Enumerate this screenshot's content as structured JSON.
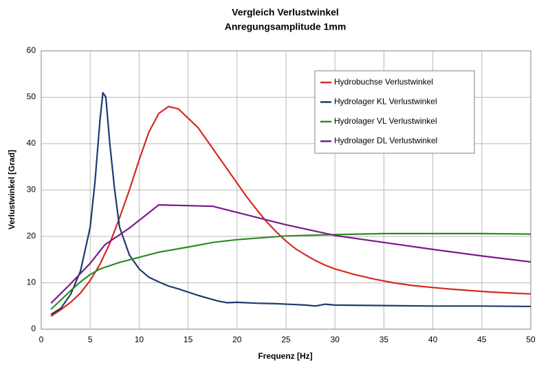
{
  "chart_data": {
    "type": "line",
    "title": "Vergleich Verlustwinkel",
    "subtitle": "Anregungsamplitude 1mm",
    "x_label": "Frequenz [Hz]",
    "y_label": "Verlustwinkel [Grad]",
    "xlim": [
      0,
      50
    ],
    "xticks": [
      0,
      5,
      10,
      15,
      20,
      25,
      30,
      35,
      40,
      45,
      50
    ],
    "ylim": [
      0,
      60
    ],
    "yticks": [
      0,
      10,
      20,
      30,
      40,
      50,
      60
    ],
    "grid": true,
    "legend": "top-right",
    "series": [
      {
        "name": "Hydrobuchse Verlustwinkel",
        "color": "#d42a20",
        "x": [
          1,
          2,
          3,
          4,
          5,
          6,
          7,
          8,
          9,
          10,
          11,
          12,
          13,
          14,
          15,
          16,
          17,
          18,
          19,
          20,
          21,
          22,
          23,
          24,
          25,
          26,
          27,
          28,
          29,
          30,
          32,
          34,
          36,
          38,
          40,
          42,
          44,
          46,
          48,
          50
        ],
        "values": [
          2.8,
          4.2,
          5.8,
          7.8,
          10.5,
          14,
          18.5,
          24,
          30,
          36.5,
          42.5,
          46.5,
          48,
          47.5,
          45.5,
          43.5,
          40.5,
          37.5,
          34.5,
          31.5,
          28.5,
          25.8,
          23.2,
          21,
          19,
          17.3,
          16,
          14.8,
          13.8,
          13,
          11.8,
          10.8,
          10,
          9.4,
          9,
          8.6,
          8.3,
          8,
          7.8,
          7.6
        ]
      },
      {
        "name": "Hydrolager KL Verlustwinkel",
        "color": "#1a3a6e",
        "x": [
          1,
          2,
          3,
          4,
          5,
          5.5,
          6,
          6.3,
          6.6,
          7,
          7.5,
          8,
          9,
          10,
          11,
          12,
          13,
          14,
          15,
          16,
          17,
          18,
          19,
          20,
          22,
          24,
          26,
          27,
          28,
          29,
          30,
          35,
          40,
          45,
          50
        ],
        "values": [
          3.2,
          4.5,
          7.5,
          12.5,
          22,
          32,
          45,
          51,
          50,
          40,
          30,
          22,
          16,
          13,
          11.2,
          10.2,
          9.3,
          8.7,
          8,
          7.3,
          6.7,
          6.1,
          5.7,
          5.8,
          5.6,
          5.5,
          5.3,
          5.2,
          5,
          5.4,
          5.2,
          5.1,
          5,
          5,
          4.9
        ]
      },
      {
        "name": "Hydrolager VL Verlustwinkel",
        "color": "#2e8a22",
        "x": [
          1,
          2,
          3,
          4,
          5,
          6,
          8,
          10,
          12,
          15,
          17.5,
          20,
          25,
          30,
          35,
          40,
          45,
          50
        ],
        "values": [
          4.3,
          6.3,
          8.3,
          10.2,
          11.8,
          13,
          14.4,
          15.5,
          16.6,
          17.7,
          18.7,
          19.3,
          20.1,
          20.4,
          20.6,
          20.6,
          20.6,
          20.5
        ]
      },
      {
        "name": "Hydrolager DL Verlustwinkel",
        "color": "#7a1a8a",
        "x": [
          1,
          3,
          5,
          6.5,
          9,
          12,
          17.5,
          25,
          30,
          35,
          40,
          45,
          50
        ],
        "values": [
          5.6,
          9.8,
          14.2,
          18.2,
          21.8,
          26.8,
          26.5,
          22.5,
          20.2,
          18.7,
          17.2,
          15.8,
          14.5
        ]
      }
    ]
  }
}
